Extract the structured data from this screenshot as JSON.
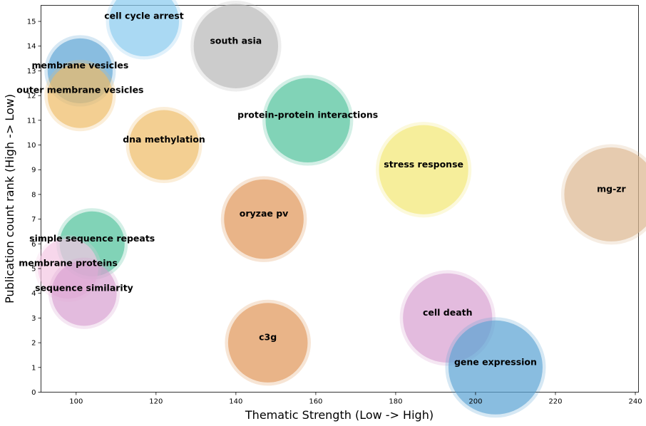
{
  "chart_data": {
    "type": "scatter",
    "xlabel": "Thematic Strength (Low -> High)",
    "ylabel": "Publication count rank (High -> Low)",
    "xlim": [
      91.2,
      240.8
    ],
    "ylim": [
      0,
      15.65
    ],
    "xticks": [
      100,
      120,
      140,
      160,
      180,
      200,
      220,
      240
    ],
    "yticks": [
      0,
      1,
      2,
      3,
      4,
      5,
      6,
      7,
      8,
      9,
      10,
      11,
      12,
      13,
      14,
      15
    ],
    "grid": false,
    "legend": "none",
    "points": [
      {
        "label": "cell cycle arrest",
        "x": 117,
        "y": 15,
        "size": 1.5,
        "color": "#87c9ee"
      },
      {
        "label": "south asia",
        "x": 140,
        "y": 14,
        "size": 1.8,
        "color": "#b8b8b8"
      },
      {
        "label": "membrane vesicles",
        "x": 101,
        "y": 13,
        "size": 1.4,
        "color": "#5ba3d4"
      },
      {
        "label": "outer membrane vesicles",
        "x": 101,
        "y": 12,
        "size": 1.4,
        "color": "#eebb66"
      },
      {
        "label": "protein-protein interactions",
        "x": 158,
        "y": 11,
        "size": 1.8,
        "color": "#4fc19a"
      },
      {
        "label": "dna methylation",
        "x": 122,
        "y": 10,
        "size": 1.5,
        "color": "#eebb66"
      },
      {
        "label": "stress response",
        "x": 187,
        "y": 9,
        "size": 1.9,
        "color": "#f2e773"
      },
      {
        "label": "mg-zr",
        "x": 234,
        "y": 8,
        "size": 2.0,
        "color": "#dcb690"
      },
      {
        "label": "oryzae pv",
        "x": 147,
        "y": 7,
        "size": 1.7,
        "color": "#e09658"
      },
      {
        "label": "simple sequence repeats",
        "x": 104,
        "y": 6,
        "size": 1.4,
        "color": "#4fc19a"
      },
      {
        "label": "membrane proteins",
        "x": 98,
        "y": 5,
        "size": 1.3,
        "color": "#f3c6e3"
      },
      {
        "label": "sequence similarity",
        "x": 102,
        "y": 4,
        "size": 1.4,
        "color": "#d89fd0"
      },
      {
        "label": "cell death",
        "x": 193,
        "y": 3,
        "size": 1.9,
        "color": "#d89fd0"
      },
      {
        "label": "c3g",
        "x": 148,
        "y": 2,
        "size": 1.7,
        "color": "#e09658"
      },
      {
        "label": "gene expression",
        "x": 205,
        "y": 1,
        "size": 2.0,
        "color": "#5ba3d4"
      }
    ]
  }
}
